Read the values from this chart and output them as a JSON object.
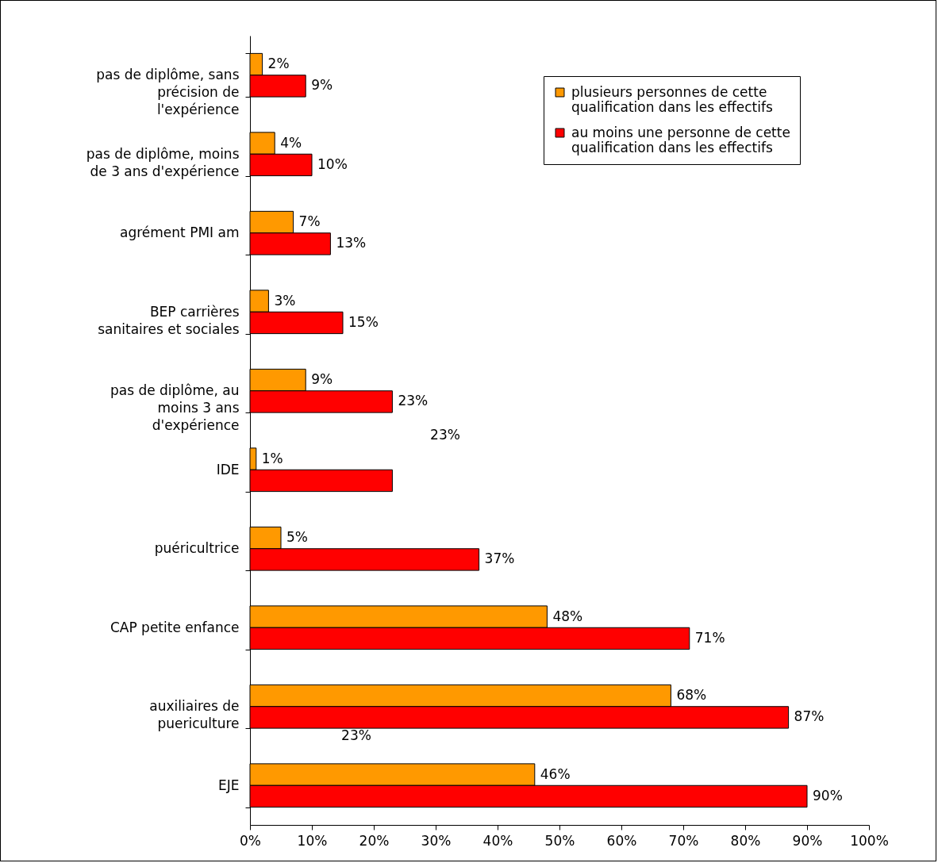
{
  "chart_data": {
    "type": "bar",
    "orientation": "horizontal",
    "categories": [
      "pas de diplôme, sans précision de l'expérience",
      "pas de diplôme, moins de 3 ans d'expérience",
      "agrément PMI am",
      "BEP carrières sanitaires et sociales",
      "pas de diplôme, au moins 3 ans d'expérience",
      "IDE",
      "puéricultrice",
      "CAP petite enfance",
      "auxiliaires de puericulture",
      "EJE"
    ],
    "series": [
      {
        "name": "plusieurs personnes de cette qualification dans les effectifs",
        "color": "#ff9900",
        "values": [
          2,
          4,
          7,
          3,
          9,
          1,
          5,
          48,
          68,
          46
        ],
        "value_labels": [
          "2%",
          "4%",
          "7%",
          "3%",
          "9%",
          "1%",
          "5%",
          "48%",
          "68%",
          "46%"
        ]
      },
      {
        "name": "au moins une personne de cette qualification dans les effectifs",
        "color": "#ff0000",
        "values": [
          9,
          10,
          13,
          15,
          23,
          23,
          37,
          71,
          87,
          90
        ],
        "value_labels": [
          "9%",
          "10%",
          "13%",
          "15%",
          "23%",
          null,
          "37%",
          "71%",
          "87%",
          "90%"
        ]
      }
    ],
    "xlim": [
      0,
      100
    ],
    "xticks": [
      {
        "value": 0,
        "label": "0%"
      },
      {
        "value": 10,
        "label": "10%"
      },
      {
        "value": 20,
        "label": "20%"
      },
      {
        "value": 30,
        "label": "30%"
      },
      {
        "value": 40,
        "label": "40%"
      },
      {
        "value": 50,
        "label": "50%"
      },
      {
        "value": 60,
        "label": "60%"
      },
      {
        "value": 70,
        "label": "70%"
      },
      {
        "value": 80,
        "label": "80%"
      },
      {
        "value": 90,
        "label": "90%"
      },
      {
        "value": 100,
        "label": "100%"
      }
    ],
    "annotations": [
      "23%",
      "23%"
    ],
    "grid": false,
    "legend": "top right"
  }
}
